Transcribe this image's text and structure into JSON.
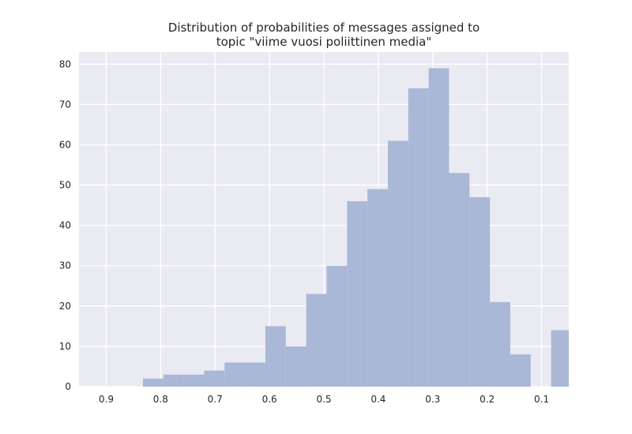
{
  "chart_data": {
    "type": "bar",
    "title_lines": [
      "Distribution of probabilities of messages assigned to",
      "topic \"viime vuosi poliittinen media\""
    ],
    "xlabel": "",
    "ylabel": "",
    "x_axis_reversed": true,
    "xlim": [
      0.95,
      0.05
    ],
    "ylim": [
      0,
      83
    ],
    "x_ticks": [
      0.9,
      0.8,
      0.7,
      0.6,
      0.5,
      0.4,
      0.3,
      0.2,
      0.1
    ],
    "x_tick_labels": [
      "0.9",
      "0.8",
      "0.7",
      "0.6",
      "0.5",
      "0.4",
      "0.3",
      "0.2",
      "0.1"
    ],
    "y_ticks": [
      0,
      10,
      20,
      30,
      40,
      50,
      60,
      70,
      80
    ],
    "y_tick_labels": [
      "0",
      "10",
      "20",
      "30",
      "40",
      "50",
      "60",
      "70",
      "80"
    ],
    "grid": true,
    "bin_width": 0.0375,
    "bins": [
      {
        "x_start": 0.8325,
        "x_end": 0.795,
        "count": 2
      },
      {
        "x_start": 0.795,
        "x_end": 0.7575,
        "count": 3
      },
      {
        "x_start": 0.7575,
        "x_end": 0.72,
        "count": 3
      },
      {
        "x_start": 0.72,
        "x_end": 0.6825,
        "count": 4
      },
      {
        "x_start": 0.6825,
        "x_end": 0.645,
        "count": 6
      },
      {
        "x_start": 0.645,
        "x_end": 0.6075,
        "count": 6
      },
      {
        "x_start": 0.6075,
        "x_end": 0.57,
        "count": 15
      },
      {
        "x_start": 0.57,
        "x_end": 0.5325,
        "count": 10
      },
      {
        "x_start": 0.5325,
        "x_end": 0.495,
        "count": 23
      },
      {
        "x_start": 0.495,
        "x_end": 0.4575,
        "count": 30
      },
      {
        "x_start": 0.4575,
        "x_end": 0.42,
        "count": 46
      },
      {
        "x_start": 0.42,
        "x_end": 0.3825,
        "count": 49
      },
      {
        "x_start": 0.3825,
        "x_end": 0.345,
        "count": 61
      },
      {
        "x_start": 0.345,
        "x_end": 0.3075,
        "count": 74
      },
      {
        "x_start": 0.3075,
        "x_end": 0.27,
        "count": 79
      },
      {
        "x_start": 0.27,
        "x_end": 0.2325,
        "count": 53
      },
      {
        "x_start": 0.2325,
        "x_end": 0.195,
        "count": 47
      },
      {
        "x_start": 0.195,
        "x_end": 0.1575,
        "count": 21
      },
      {
        "x_start": 0.1575,
        "x_end": 0.12,
        "count": 8
      },
      {
        "x_start": 0.12,
        "x_end": 0.0825,
        "count": 0
      },
      {
        "x_start": 0.0825,
        "x_end": 0.05,
        "count": 14
      }
    ],
    "colors": {
      "bar": "#a9b8d6",
      "axes_background": "#eaeaf2",
      "grid": "#ffffff",
      "text": "#262626"
    }
  }
}
